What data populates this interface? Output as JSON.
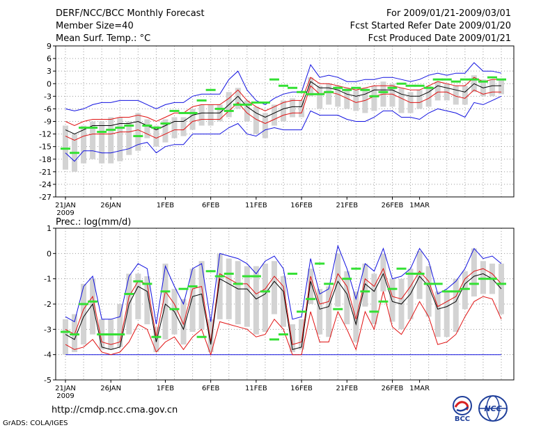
{
  "header": {
    "title": "DERF/NCC/BCC Monthly Forecast",
    "member_size": "Member Size=40",
    "variable": "Mean Surf. Temp.: °C",
    "period": "For 2009/01/21-2009/03/01",
    "start_date": "Fcst Started Refer Date 2009/01/20",
    "produced": "Fcst Produced Date 2009/01/21"
  },
  "footer": {
    "url": "http://cmdp.ncc.cma.gov.cn",
    "credit": "GrADS: COLA/IGES",
    "logo_bcc": "BCC",
    "logo_ncc": "NCC"
  },
  "chart_data": [
    {
      "type": "box-ensemble",
      "title": "Mean Surf. Temp.: °C",
      "ylabel": "Mean Surf. Temp. (°C)",
      "ylim": [
        -27,
        9
      ],
      "yticks": [
        9,
        6,
        3,
        0,
        -3,
        -6,
        -9,
        -12,
        -15,
        -18,
        -21,
        -24,
        -27
      ],
      "x_labels": [
        "21JAN",
        "26JAN",
        "1FEB",
        "6FEB",
        "11FEB",
        "16FEB",
        "21FEB",
        "26FEB",
        "1MAR"
      ],
      "x_label_days": [
        0,
        5,
        11,
        16,
        21,
        26,
        31,
        36,
        39
      ],
      "year_label": "2009",
      "mean": [
        -11.0,
        -12.0,
        -11.0,
        -10.0,
        -10.0,
        -10.0,
        -9.5,
        -9.5,
        -9.0,
        -10.0,
        -11.0,
        -10.0,
        -9.0,
        -9.0,
        -7.5,
        -7.0,
        -7.0,
        -7.0,
        -5.0,
        -3.0,
        -5.5,
        -7.0,
        -8.0,
        -7.0,
        -6.0,
        -5.5,
        -5.5,
        0.5,
        -1.0,
        -1.0,
        -1.5,
        -2.5,
        -3.0,
        -2.5,
        -1.5,
        -1.5,
        -1.5,
        -2.5,
        -3.0,
        -3.0,
        -2.0,
        -0.5,
        -1.0,
        -1.5,
        -2.0,
        0.0,
        -1.0,
        -0.5,
        -0.5
      ],
      "red_upper": [
        -9.0,
        -10.0,
        -9.0,
        -8.5,
        -8.5,
        -8.5,
        -8.0,
        -8.0,
        -7.5,
        -8.0,
        -9.0,
        -8.0,
        -7.0,
        -7.0,
        -5.5,
        -5.0,
        -5.0,
        -5.0,
        -3.5,
        -1.5,
        -4.0,
        -5.5,
        -6.5,
        -5.5,
        -4.5,
        -4.0,
        -4.0,
        1.5,
        0.0,
        0.0,
        -0.5,
        -1.0,
        -1.5,
        -1.0,
        -0.5,
        -0.5,
        -0.5,
        -1.0,
        -1.5,
        -1.5,
        -0.5,
        0.5,
        0.0,
        -0.5,
        -0.5,
        1.5,
        0.5,
        1.0,
        1.0
      ],
      "red_lower": [
        -12.5,
        -13.5,
        -12.5,
        -12.0,
        -12.0,
        -12.0,
        -11.5,
        -11.5,
        -11.0,
        -12.0,
        -13.0,
        -12.0,
        -11.0,
        -11.0,
        -9.0,
        -8.5,
        -8.5,
        -8.5,
        -6.5,
        -4.5,
        -7.0,
        -8.5,
        -9.5,
        -8.5,
        -7.5,
        -7.0,
        -7.0,
        -0.5,
        -2.5,
        -2.0,
        -2.5,
        -3.5,
        -4.5,
        -4.0,
        -3.0,
        -2.5,
        -2.5,
        -3.5,
        -4.5,
        -4.5,
        -3.5,
        -2.0,
        -2.0,
        -3.0,
        -3.5,
        -1.5,
        -2.5,
        -2.0,
        -2.0
      ],
      "blue_upper": [
        -6.0,
        -6.5,
        -6.0,
        -5.0,
        -4.5,
        -4.5,
        -4.0,
        -4.0,
        -4.0,
        -5.0,
        -6.0,
        -5.0,
        -4.5,
        -4.5,
        -3.0,
        -2.5,
        -2.5,
        -2.5,
        1.0,
        3.0,
        -1.5,
        -4.0,
        -5.0,
        -3.5,
        -2.5,
        -2.0,
        -2.0,
        4.5,
        1.5,
        2.0,
        1.5,
        0.5,
        0.5,
        1.0,
        1.0,
        1.5,
        1.5,
        1.0,
        0.5,
        1.0,
        2.0,
        2.5,
        2.0,
        2.5,
        2.5,
        5.0,
        3.0,
        3.0,
        2.5
      ],
      "blue_lower": [
        -16.5,
        -18.5,
        -16.0,
        -16.0,
        -16.5,
        -16.5,
        -16.0,
        -15.5,
        -14.5,
        -14.0,
        -16.5,
        -15.0,
        -14.5,
        -14.5,
        -12.0,
        -12.0,
        -12.0,
        -12.0,
        -10.5,
        -9.5,
        -12.0,
        -12.5,
        -11.0,
        -10.5,
        -11.0,
        -11.0,
        -11.0,
        -6.5,
        -7.5,
        -7.5,
        -7.5,
        -8.5,
        -9.0,
        -9.0,
        -8.0,
        -6.5,
        -6.5,
        -8.0,
        -8.0,
        -8.5,
        -7.0,
        -6.0,
        -6.5,
        -7.0,
        -8.0,
        -4.5,
        -5.0,
        -4.0,
        -3.0
      ],
      "box_upper": [
        -10.0,
        -12.0,
        -10.0,
        -9.0,
        -9.0,
        -8.0,
        -8.0,
        -9.0,
        -7.0,
        -8.5,
        -10.0,
        -8.5,
        -8.0,
        -8.0,
        -6.0,
        -5.0,
        -5.0,
        -5.0,
        -2.0,
        -1.0,
        -4.0,
        -5.5,
        -7.0,
        -5.0,
        -4.0,
        -3.5,
        -4.0,
        1.5,
        -0.5,
        0.0,
        -0.5,
        -1.0,
        -1.5,
        -1.0,
        -0.5,
        0.5,
        0.0,
        -1.0,
        -2.0,
        -1.5,
        -0.5,
        0.5,
        0.0,
        -0.5,
        -0.5,
        2.0,
        1.0,
        1.0,
        1.0
      ],
      "box_lower": [
        -20.5,
        -21.0,
        -19.0,
        -18.0,
        -19.0,
        -19.0,
        -18.5,
        -17.0,
        -16.0,
        -13.0,
        -15.0,
        -14.0,
        -13.0,
        -12.5,
        -11.0,
        -10.0,
        -10.0,
        -9.0,
        -8.0,
        -6.0,
        -9.0,
        -12.0,
        -13.0,
        -10.0,
        -9.0,
        -8.0,
        -8.0,
        -3.0,
        -6.0,
        -5.0,
        -5.5,
        -6.0,
        -6.5,
        -7.0,
        -6.5,
        -5.5,
        -5.5,
        -7.0,
        -7.0,
        -6.0,
        -5.5,
        -4.0,
        -4.0,
        -5.0,
        -5.0,
        -2.0,
        -3.0,
        -3.0,
        -2.5
      ],
      "observed": [
        -15.5,
        -16.5,
        -10.5,
        -10.5,
        -11.5,
        -11.0,
        -10.5,
        -10.0,
        -12.5,
        -10.0,
        -10.5,
        -9.5,
        -6.5,
        -7.0,
        -7.0,
        -4.0,
        -1.5,
        -6.0,
        -6.5,
        -5.0,
        -5.0,
        -4.5,
        -4.5,
        1.0,
        -0.5,
        -1.0,
        -2.0,
        -2.5,
        -2.5,
        -2.0,
        -1.0,
        -1.5,
        -1.0,
        -1.5,
        -3.0,
        -2.0,
        -1.0,
        0.0,
        -0.5,
        -0.5,
        -1.0,
        1.0,
        1.0,
        0.5,
        1.0,
        1.0,
        0.5,
        1.5,
        1.0
      ]
    },
    {
      "type": "box-ensemble",
      "title": "Prec.: log(mm/d)",
      "ylabel": "Prec. log(mm/d)",
      "ylim": [
        -5,
        1
      ],
      "yticks": [
        1,
        0,
        -1,
        -2,
        -3,
        -4,
        -5
      ],
      "x_labels": [
        "21JAN",
        "26JAN",
        "1FEB",
        "6FEB",
        "11FEB",
        "16FEB",
        "21FEB",
        "26FEB",
        "1MAR"
      ],
      "x_label_days": [
        0,
        5,
        11,
        16,
        21,
        26,
        31,
        36,
        39
      ],
      "year_label": "2009",
      "mean": [
        -3.2,
        -3.4,
        -2.5,
        -2.0,
        -3.7,
        -3.8,
        -3.7,
        -2.0,
        -1.3,
        -1.5,
        -3.5,
        -2.0,
        -2.3,
        -3.0,
        -1.7,
        -1.6,
        -3.6,
        -1.0,
        -1.2,
        -1.4,
        -1.4,
        -1.8,
        -1.6,
        -1.1,
        -1.5,
        -3.8,
        -3.7,
        -1.1,
        -2.2,
        -2.1,
        -1.1,
        -1.6,
        -2.8,
        -1.2,
        -1.5,
        -0.8,
        -1.9,
        -2.0,
        -1.6,
        -0.9,
        -1.3,
        -2.2,
        -2.1,
        -1.9,
        -1.2,
        -0.9,
        -0.8,
        -1.0,
        -1.4
      ],
      "red_upper": [
        -3.0,
        -3.2,
        -2.2,
        -1.7,
        -3.5,
        -3.6,
        -3.5,
        -1.7,
        -1.1,
        -1.2,
        -3.3,
        -1.5,
        -2.0,
        -2.8,
        -1.4,
        -1.3,
        -3.5,
        -0.8,
        -1.0,
        -1.2,
        -1.2,
        -1.6,
        -1.4,
        -0.9,
        -1.3,
        -3.6,
        -3.5,
        -0.9,
        -2.0,
        -1.9,
        -0.8,
        -1.3,
        -2.6,
        -1.0,
        -1.3,
        -0.6,
        -1.7,
        -1.8,
        -1.3,
        -0.7,
        -1.1,
        -2.1,
        -1.9,
        -1.7,
        -1.0,
        -0.7,
        -0.6,
        -0.8,
        -1.2
      ],
      "red_lower": [
        -3.6,
        -3.8,
        -3.7,
        -3.4,
        -3.9,
        -4.0,
        -3.9,
        -3.5,
        -2.8,
        -3.0,
        -3.9,
        -3.5,
        -3.3,
        -3.8,
        -3.3,
        -3.0,
        -4.0,
        -2.7,
        -2.8,
        -2.9,
        -3.0,
        -3.3,
        -3.2,
        -2.6,
        -3.0,
        -4.0,
        -4.0,
        -2.3,
        -3.5,
        -3.5,
        -2.3,
        -3.0,
        -3.8,
        -2.3,
        -3.0,
        -1.5,
        -2.9,
        -3.2,
        -2.6,
        -1.9,
        -2.5,
        -3.6,
        -3.5,
        -3.2,
        -2.5,
        -1.9,
        -1.7,
        -1.8,
        -2.6
      ],
      "blue_upper": [
        -2.5,
        -2.7,
        -1.3,
        -0.9,
        -2.6,
        -2.6,
        -2.5,
        -0.9,
        -0.4,
        -0.6,
        -2.8,
        -0.5,
        -1.3,
        -2.0,
        -0.6,
        -0.4,
        -2.7,
        0.0,
        -0.1,
        -0.2,
        -0.4,
        -0.8,
        -0.3,
        -0.1,
        -0.6,
        -2.6,
        -2.5,
        -0.2,
        -1.6,
        -1.4,
        0.3,
        -0.6,
        -1.8,
        -0.4,
        -0.7,
        0.2,
        -1.0,
        -0.9,
        -0.6,
        0.2,
        -0.3,
        -1.6,
        -1.4,
        -1.1,
        -0.6,
        0.2,
        -0.2,
        -0.1,
        -0.4
      ],
      "blue_lower": [
        -4.0,
        -4.0,
        -4.0,
        -4.0,
        -4.0,
        -4.0,
        -4.0,
        -4.0,
        -4.0,
        -4.0,
        -4.0,
        -4.0,
        -4.0,
        -4.0,
        -4.0,
        -4.0,
        -4.0,
        -4.0,
        -4.0,
        -4.0,
        -4.0,
        -4.0,
        -4.0,
        -4.0,
        -4.0,
        -4.0,
        -4.0,
        -4.0,
        -4.0,
        -4.0,
        -4.0,
        -4.0,
        -4.0,
        -4.0,
        -4.0,
        -4.0,
        -4.0,
        -4.0,
        -4.0,
        -4.0,
        -4.0,
        -4.0,
        -4.0,
        -4.0,
        -4.0,
        -4.0,
        -4.0,
        -4.0,
        -4.0
      ],
      "box_upper": [
        -2.6,
        -2.4,
        -1.2,
        -1.0,
        -2.6,
        -2.6,
        -2.0,
        -0.8,
        -0.8,
        -0.9,
        -2.9,
        -0.4,
        -1.4,
        -1.8,
        -0.6,
        -0.3,
        -2.6,
        0.0,
        -0.2,
        -0.3,
        -0.5,
        -0.5,
        -0.4,
        -0.3,
        -0.9,
        -2.8,
        -2.6,
        -0.6,
        -1.4,
        -1.3,
        0.0,
        -0.7,
        -1.5,
        -0.4,
        -0.8,
        0.0,
        -1.0,
        -1.0,
        -0.6,
        0.1,
        -0.5,
        -1.5,
        -1.5,
        -1.0,
        -0.7,
        0.2,
        -0.3,
        -0.4,
        -0.4
      ],
      "box_lower": [
        -4.0,
        -3.9,
        -3.6,
        -3.2,
        -3.8,
        -3.8,
        -3.7,
        -3.2,
        -2.6,
        -2.8,
        -3.9,
        -3.4,
        -3.2,
        -3.6,
        -3.1,
        -3.0,
        -3.9,
        -2.6,
        -2.6,
        -2.8,
        -2.9,
        -3.2,
        -3.1,
        -2.4,
        -2.9,
        -3.9,
        -3.8,
        -2.0,
        -3.2,
        -3.3,
        -2.1,
        -2.8,
        -3.5,
        -2.1,
        -2.8,
        -1.5,
        -2.7,
        -3.0,
        -2.6,
        -1.8,
        -2.5,
        -3.3,
        -3.3,
        -3.1,
        -2.2,
        -1.7,
        -1.6,
        -1.6,
        -2.4
      ],
      "observed": [
        -3.1,
        -3.2,
        -2.0,
        -1.9,
        -3.2,
        -3.2,
        -3.2,
        -1.6,
        -1.1,
        -1.2,
        -3.3,
        -1.5,
        -2.2,
        -1.4,
        -1.3,
        -3.3,
        -0.7,
        -0.9,
        -0.8,
        -1.2,
        -0.9,
        -0.9,
        -1.5,
        -3.4,
        -3.2,
        -0.8,
        -2.3,
        -1.8,
        -0.4,
        -1.2,
        -2.2,
        -1.0,
        -0.6,
        -1.5,
        -2.3,
        -1.9,
        -1.4,
        -0.6,
        -0.8,
        -0.8,
        -1.2,
        -1.2,
        -1.5,
        -1.5,
        -1.4,
        -1.2,
        -1.0,
        -1.0,
        -1.2
      ]
    }
  ]
}
